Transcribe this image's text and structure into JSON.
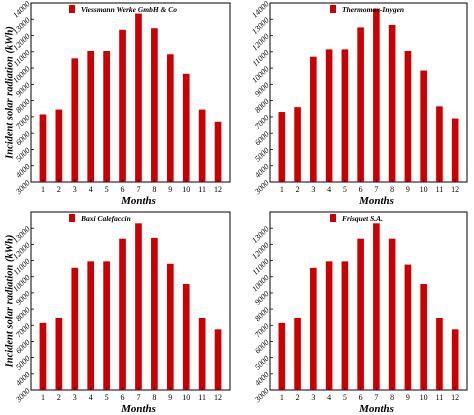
{
  "chart_data": [
    {
      "type": "bar",
      "title": "",
      "legend": "Viessmann Werke GmbH & Co",
      "color": "#cc0000",
      "xlabel": "Months",
      "ylabel": "Incident solar radiation (kWh)",
      "categories": [
        "1",
        "2",
        "3",
        "4",
        "5",
        "6",
        "7",
        "8",
        "9",
        "10",
        "11",
        "12"
      ],
      "values": [
        7150,
        7450,
        10600,
        11050,
        11050,
        12350,
        13350,
        12450,
        10850,
        9650,
        7450,
        6700
      ],
      "ylim": [
        3000,
        14000
      ],
      "yticks": [
        "3000",
        "4000",
        "5000",
        "6000",
        "7000",
        "8000",
        "9000",
        "10000",
        "11000",
        "12000",
        "13000",
        "14000"
      ],
      "grid": false,
      "legend_position": "top"
    },
    {
      "type": "bar",
      "title": "",
      "legend": "Thermomax-Inygen",
      "color": "#cc0000",
      "xlabel": "Months",
      "ylabel": "",
      "categories": [
        "1",
        "2",
        "3",
        "4",
        "5",
        "6",
        "7",
        "8",
        "9",
        "10",
        "11",
        "12"
      ],
      "values": [
        7300,
        7600,
        10700,
        11150,
        11150,
        12500,
        13650,
        12650,
        11050,
        9850,
        7650,
        6900
      ],
      "ylim": [
        3000,
        14000
      ],
      "yticks": [
        "3000",
        "4000",
        "5000",
        "6000",
        "7000",
        "8000",
        "9000",
        "10000",
        "11000",
        "12000",
        "13000",
        "14000"
      ],
      "grid": false,
      "legend_position": "top"
    },
    {
      "type": "bar",
      "title": "",
      "legend": "Baxi Calefaccin",
      "color": "#cc0000",
      "xlabel": "Months",
      "ylabel": "Incident solar radiation (kWh)",
      "categories": [
        "1",
        "2",
        "3",
        "4",
        "5",
        "6",
        "7",
        "8",
        "9",
        "10",
        "11",
        "12"
      ],
      "values": [
        7150,
        7450,
        10550,
        10950,
        10950,
        12350,
        13300,
        12400,
        10800,
        9550,
        7450,
        6750
      ],
      "ylim": [
        3000,
        14000
      ],
      "yticks": [
        "3000",
        "4000",
        "5000",
        "6000",
        "7000",
        "8000",
        "9000",
        "10000",
        "11000",
        "12000",
        "13000"
      ],
      "grid": false,
      "legend_position": "top"
    },
    {
      "type": "bar",
      "title": "",
      "legend": "Frisquet S.A.",
      "color": "#cc0000",
      "xlabel": "Months",
      "ylabel": "",
      "categories": [
        "1",
        "2",
        "3",
        "4",
        "5",
        "6",
        "7",
        "8",
        "9",
        "10",
        "11",
        "12"
      ],
      "values": [
        7150,
        7450,
        10550,
        10950,
        10950,
        12350,
        13300,
        12350,
        10750,
        9550,
        7450,
        6750
      ],
      "ylim": [
        3000,
        14000
      ],
      "yticks": [
        "3000",
        "4000",
        "5000",
        "6000",
        "7000",
        "8000",
        "9000",
        "10000",
        "11000",
        "12000",
        "13000"
      ],
      "grid": false,
      "legend_position": "top"
    }
  ]
}
